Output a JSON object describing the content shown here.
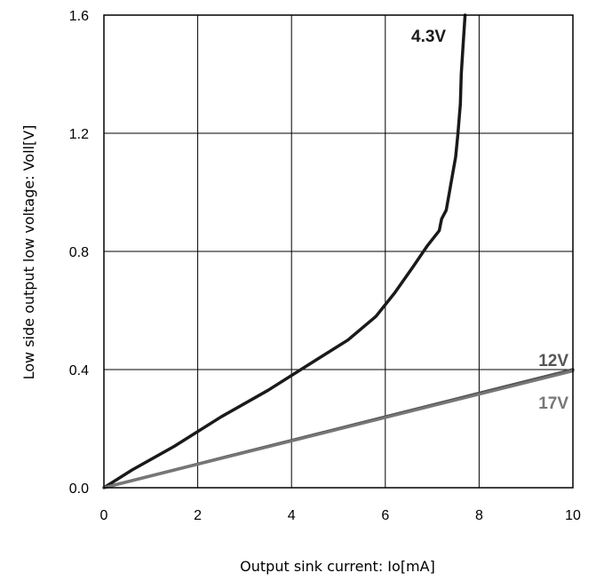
{
  "chart_data": {
    "type": "line",
    "title": "",
    "xlabel": "Output sink current: Io[mA]",
    "ylabel": "Low side output low voltage: Voll[V]",
    "xlim": [
      0,
      10
    ],
    "ylim": [
      0,
      1.6
    ],
    "xticks": [
      "0",
      "2",
      "4",
      "6",
      "8",
      "10"
    ],
    "yticks": [
      "0.0",
      "0.4",
      "0.8",
      "1.2",
      "1.6"
    ],
    "grid": true,
    "legend": "none",
    "series": [
      {
        "name": "4.3V",
        "color": "#1a1a1a",
        "x": [
          0,
          0.6,
          1.5,
          2.5,
          3.5,
          4.5,
          5.2,
          5.8,
          6.2,
          6.6,
          6.9,
          7.15,
          7.2,
          7.3,
          7.4,
          7.5,
          7.55,
          7.6,
          7.62,
          7.66,
          7.7
        ],
        "y": [
          0,
          0.06,
          0.14,
          0.24,
          0.33,
          0.43,
          0.5,
          0.58,
          0.66,
          0.75,
          0.82,
          0.87,
          0.91,
          0.94,
          1.03,
          1.12,
          1.2,
          1.3,
          1.4,
          1.5,
          1.6
        ]
      },
      {
        "name": "12V",
        "color": "#555555",
        "x": [
          0,
          2,
          4,
          6,
          8,
          10
        ],
        "y": [
          0,
          0.08,
          0.16,
          0.24,
          0.32,
          0.4
        ]
      },
      {
        "name": "17V",
        "color": "#777777",
        "x": [
          0,
          2,
          4,
          6,
          8,
          10
        ],
        "y": [
          0,
          0.079,
          0.158,
          0.237,
          0.316,
          0.395
        ]
      }
    ]
  }
}
